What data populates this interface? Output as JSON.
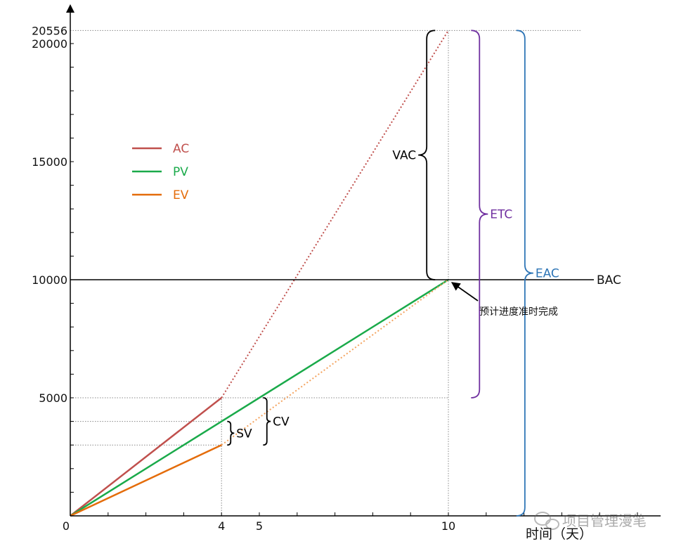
{
  "chart_data": {
    "type": "line",
    "xlabel": "时间（天）",
    "ylabel": "",
    "xlim": [
      0,
      15.5
    ],
    "ylim": [
      0,
      21500
    ],
    "x_ticks": [
      0,
      4,
      5,
      10
    ],
    "y_ticks": [
      5000,
      10000,
      15000,
      20000,
      20556
    ],
    "legend_position": "left",
    "series": [
      {
        "name": "AC",
        "color": "#c0504d",
        "x": [
          0,
          4
        ],
        "y": [
          0,
          5000
        ],
        "forecast": {
          "x": [
            4,
            10
          ],
          "y": [
            5000,
            20556
          ],
          "color": "#c0504d",
          "style": "dotted"
        }
      },
      {
        "name": "PV",
        "color": "#1aaa4a",
        "x": [
          0,
          10
        ],
        "y": [
          0,
          10000
        ]
      },
      {
        "name": "EV",
        "color": "#e46c0a",
        "x": [
          0,
          4
        ],
        "y": [
          0,
          3000
        ],
        "forecast": {
          "x": [
            4,
            10
          ],
          "y": [
            3000,
            10000
          ],
          "color": "#f4a460",
          "style": "dotted"
        }
      }
    ],
    "reference_lines": [
      {
        "label": "BAC",
        "value": 10000,
        "orientation": "horizontal",
        "color": "#000000"
      }
    ],
    "guide_lines": [
      {
        "y": 20556,
        "x_from": 0,
        "x_to": 13.5
      },
      {
        "y": 5000,
        "x_from": 0,
        "x_to": 10
      },
      {
        "y": 4000,
        "x_from": 0,
        "x_to": 4
      },
      {
        "y": 3000,
        "x_from": 0,
        "x_to": 4
      },
      {
        "x": 4,
        "y_from": 0,
        "y_to": 5000
      },
      {
        "x": 10,
        "y_from": 0,
        "y_to": 20556
      }
    ],
    "braces": [
      {
        "label": "VAC",
        "x": 9.65,
        "y_from": 10000,
        "y_to": 20556,
        "side": "left",
        "color": "#000000"
      },
      {
        "label": "ETC",
        "x": 10.6,
        "y_from": 5000,
        "y_to": 20556,
        "side": "right",
        "color": "#7030a0"
      },
      {
        "label": "EAC",
        "x": 11.8,
        "y_from": 0,
        "y_to": 20556,
        "side": "right",
        "color": "#2e75b6"
      },
      {
        "label": "SV",
        "x": 4.15,
        "y_from": 3000,
        "y_to": 4000,
        "side": "right",
        "color": "#000000"
      },
      {
        "label": "CV",
        "x": 5.1,
        "y_from": 3000,
        "y_to": 5000,
        "side": "right",
        "color": "#000000"
      }
    ],
    "annotations": [
      {
        "text": "预计进度准时完成",
        "target_x": 10,
        "target_y": 10000
      }
    ]
  },
  "watermark": "项目管理漫笔",
  "colors": {
    "axis": "#000000",
    "grid": "#888888",
    "background": "#ffffff"
  }
}
